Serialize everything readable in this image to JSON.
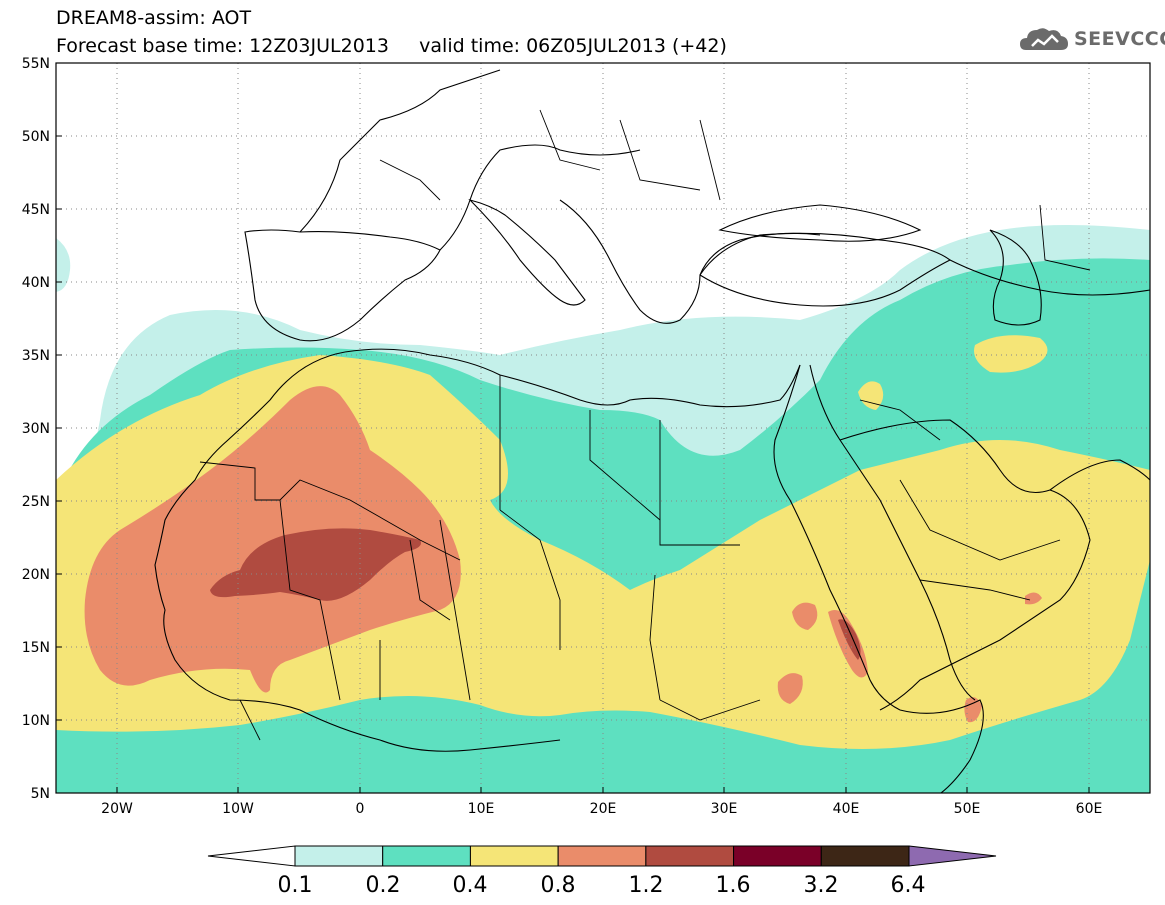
{
  "header": {
    "title": "DREAM8-assim: AOT",
    "base_time": "Forecast base time: 12Z03JUL2013",
    "valid_time": "valid time: 06Z05JUL2013 (+42)"
  },
  "logo": {
    "text": "SEEVCCC",
    "icon": "cloud-logo-icon"
  },
  "axes": {
    "lat_labels": [
      "55N",
      "50N",
      "45N",
      "40N",
      "35N",
      "30N",
      "25N",
      "20N",
      "15N",
      "10N",
      "5N"
    ],
    "lon_labels": [
      "20W",
      "10W",
      "0",
      "10E",
      "20E",
      "30E",
      "40E",
      "50E",
      "60E"
    ],
    "lat_range": [
      5,
      55
    ],
    "lon_range": [
      -25,
      65
    ]
  },
  "legend": {
    "colors": [
      "#ffffff",
      "#c4f0ea",
      "#5ee0c0",
      "#f5e577",
      "#ea8c6a",
      "#b04b40",
      "#7a0028",
      "#3d2616",
      "#8e6ab0"
    ],
    "labels": [
      "0.1",
      "0.2",
      "0.4",
      "0.8",
      "1.2",
      "1.6",
      "3.2",
      "6.4"
    ]
  }
}
